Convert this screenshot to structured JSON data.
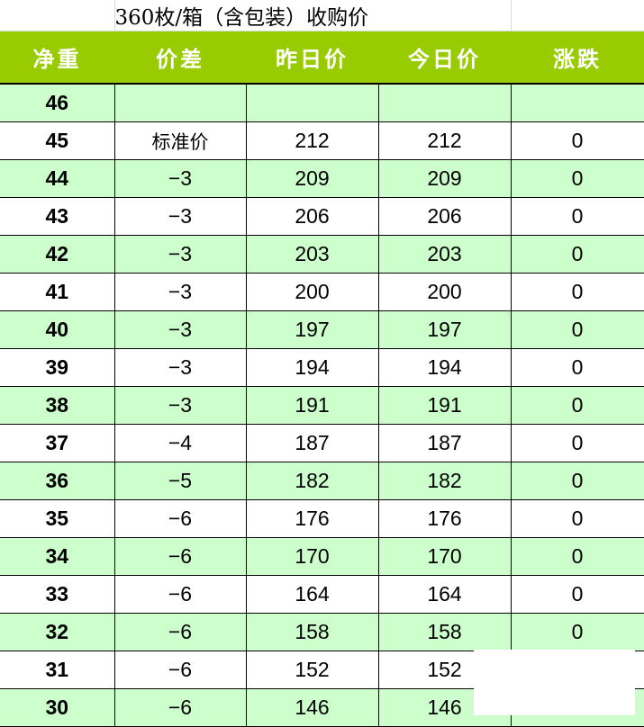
{
  "title": "360枚/箱（含包装）收购价",
  "headers": [
    "净重",
    "价差",
    "昨日价",
    "今日价",
    "涨跌"
  ],
  "colors": {
    "header_bg": "#99cc00",
    "stripe": "#ccffcc"
  },
  "rows": [
    {
      "weight": "46",
      "diff": "",
      "yesterday": "",
      "today": "",
      "change": ""
    },
    {
      "weight": "45",
      "diff": "标准价",
      "yesterday": "212",
      "today": "212",
      "change": "0"
    },
    {
      "weight": "44",
      "diff": "-3",
      "yesterday": "209",
      "today": "209",
      "change": "0"
    },
    {
      "weight": "43",
      "diff": "-3",
      "yesterday": "206",
      "today": "206",
      "change": "0"
    },
    {
      "weight": "42",
      "diff": "-3",
      "yesterday": "203",
      "today": "203",
      "change": "0"
    },
    {
      "weight": "41",
      "diff": "-3",
      "yesterday": "200",
      "today": "200",
      "change": "0"
    },
    {
      "weight": "40",
      "diff": "-3",
      "yesterday": "197",
      "today": "197",
      "change": "0"
    },
    {
      "weight": "39",
      "diff": "-3",
      "yesterday": "194",
      "today": "194",
      "change": "0"
    },
    {
      "weight": "38",
      "diff": "-3",
      "yesterday": "191",
      "today": "191",
      "change": "0"
    },
    {
      "weight": "37",
      "diff": "-4",
      "yesterday": "187",
      "today": "187",
      "change": "0"
    },
    {
      "weight": "36",
      "diff": "-5",
      "yesterday": "182",
      "today": "182",
      "change": "0"
    },
    {
      "weight": "35",
      "diff": "-6",
      "yesterday": "176",
      "today": "176",
      "change": "0"
    },
    {
      "weight": "34",
      "diff": "-6",
      "yesterday": "170",
      "today": "170",
      "change": "0"
    },
    {
      "weight": "33",
      "diff": "-6",
      "yesterday": "164",
      "today": "164",
      "change": "0"
    },
    {
      "weight": "32",
      "diff": "-6",
      "yesterday": "158",
      "today": "158",
      "change": "0"
    },
    {
      "weight": "31",
      "diff": "-6",
      "yesterday": "152",
      "today": "152",
      "change": ""
    },
    {
      "weight": "30",
      "diff": "-6",
      "yesterday": "146",
      "today": "146",
      "change": ""
    }
  ]
}
